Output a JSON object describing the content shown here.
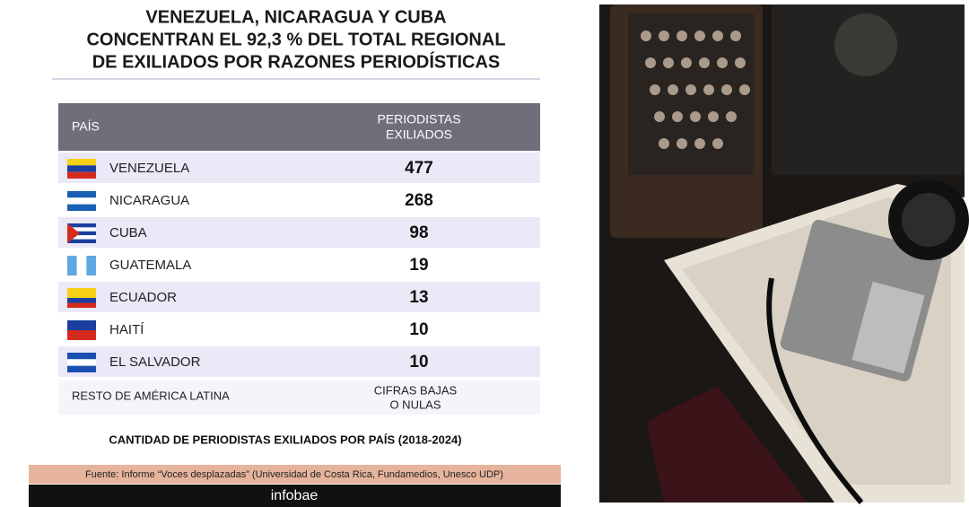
{
  "header": {
    "title": [
      "VENEZUELA, NICARAGUA Y CUBA",
      "CONCENTRAN EL 92,3 % DEL TOTAL REGIONAL",
      "DE EXILIADOS POR RAZONES PERIODÍSTICAS"
    ]
  },
  "table": {
    "columns": [
      "PAÍS",
      [
        "PERIODISTAS",
        "EXILIADOS"
      ]
    ],
    "rows": [
      [
        "VENEZUELA",
        "477"
      ],
      [
        "NICARAGUA",
        "268"
      ],
      [
        "CUBA",
        "98"
      ],
      [
        "GUATEMALA",
        "19"
      ],
      [
        "ECUADOR",
        "13"
      ],
      [
        "HAITÍ",
        "10"
      ],
      [
        "EL SALVADOR",
        "10"
      ]
    ],
    "rest": [
      "RESTO DE AMÉRICA LATINA",
      [
        "CIFRAS BAJAS",
        "O NULAS"
      ]
    ]
  },
  "caption": "CANTIDAD DE PERIODISTAS EXILIADOS POR PAÍS (2018-2024)",
  "source": "Fuente: Informe “Voces desplazadas” (Universidad de Costa Rica, Fundamedios, Unesco UDP)",
  "logo": "infobae"
}
